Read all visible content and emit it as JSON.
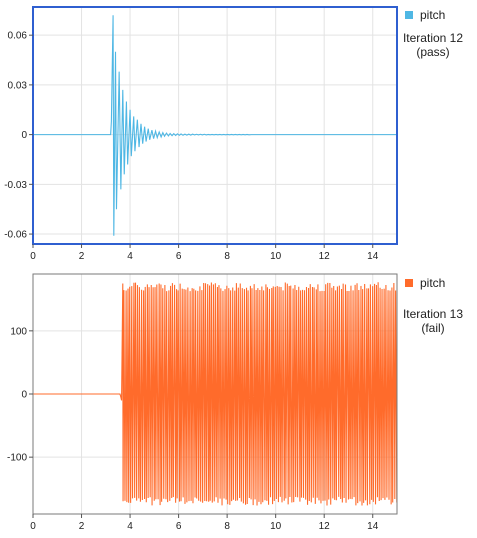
{
  "chart_data": [
    {
      "type": "line",
      "panel": "top",
      "selected": true,
      "xlim": [
        0,
        15
      ],
      "ylim": [
        -0.066,
        0.077
      ],
      "x_ticks": [
        0,
        2,
        4,
        6,
        8,
        10,
        12,
        14
      ],
      "y_ticks": [
        0.06,
        0.03,
        0,
        -0.03,
        -0.06
      ],
      "y_tick_labels": [
        "0.06",
        "0.03",
        "0",
        "-0.03",
        "-0.06"
      ],
      "grid": true,
      "legend_position": "top-right",
      "series": [
        {
          "name": "pitch",
          "color": "#4fb7e4",
          "x": [
            0,
            3.2,
            3.23,
            3.3,
            3.33,
            3.4,
            3.44,
            3.55,
            3.62,
            3.7,
            3.76,
            3.85,
            3.9,
            4.0,
            4.05,
            4.15,
            4.2,
            4.3,
            4.37,
            4.45,
            4.52,
            4.6,
            4.66,
            4.75,
            4.81,
            4.9,
            4.97,
            5.05,
            5.12,
            5.2,
            5.28,
            5.35,
            5.42,
            5.5,
            5.58,
            5.65,
            5.73,
            5.8,
            5.88,
            5.95,
            6.03,
            6.1,
            6.18,
            6.26,
            6.34,
            6.42,
            6.5,
            6.58,
            6.66,
            6.74,
            6.82,
            6.9,
            6.98,
            7.06,
            7.14,
            7.22,
            7.3,
            7.38,
            7.46,
            7.54,
            7.62,
            7.7,
            7.78,
            7.86,
            7.94,
            8.02,
            8.1,
            8.18,
            8.26,
            8.34,
            8.42,
            8.5,
            8.58,
            8.66,
            8.74,
            8.82,
            8.9,
            9.0,
            15
          ],
          "y": [
            0,
            0,
            0.008,
            0.072,
            -0.061,
            0.05,
            -0.045,
            0.038,
            -0.033,
            0.027,
            -0.024,
            0.02,
            -0.018,
            0.015,
            -0.013,
            0.011,
            -0.01,
            0.009,
            -0.0075,
            0.0065,
            -0.0055,
            0.0048,
            -0.0042,
            0.0036,
            -0.0031,
            0.0027,
            -0.0024,
            0.0021,
            -0.0018,
            0.0016,
            -0.0014,
            0.0012,
            -0.001,
            0.0009,
            -0.0008,
            0.0007,
            -0.0006,
            0.0006,
            -0.0005,
            0.0005,
            -0.0004,
            0.0004,
            -0.0004,
            0.0003,
            -0.0003,
            0.0003,
            -0.0003,
            0.0003,
            -0.0002,
            0.0002,
            -0.0002,
            0.0002,
            -0.0002,
            0.0002,
            -0.0002,
            0.0001,
            -0.0001,
            0.0001,
            -0.0001,
            0.0001,
            -0.0001,
            0.0001,
            -0.0001,
            0.0001,
            -0.0001,
            0.0001,
            -0.0001,
            0.0001,
            -0.0001,
            0.0001,
            -0.0001,
            0.0001,
            -0.0001,
            0.0001,
            -0.0001,
            0.0001,
            -0.0001,
            0,
            0
          ]
        }
      ],
      "annotation": [
        "Iteration 12",
        "(pass)"
      ]
    },
    {
      "type": "line",
      "panel": "bottom",
      "selected": false,
      "xlim": [
        0,
        15
      ],
      "ylim": [
        -190,
        190
      ],
      "x_ticks": [
        0,
        2,
        4,
        6,
        8,
        10,
        12,
        14
      ],
      "y_ticks": [
        100,
        0,
        -100
      ],
      "y_tick_labels": [
        "100",
        "0",
        "-100"
      ],
      "grid": true,
      "legend_position": "top-right",
      "series": [
        {
          "name": "pitch",
          "color": "#ff6b2b",
          "x": [
            0,
            3.55,
            3.58,
            3.6,
            3.62,
            3.65,
            3.7,
            3.78,
            3.85,
            15
          ],
          "y": [
            0,
            0,
            0,
            -2,
            -5,
            -10,
            175,
            -178,
            176,
            -176
          ],
          "oscillation": {
            "from": 3.7,
            "to": 15,
            "amplitude": 177,
            "period": 0.08
          }
        }
      ],
      "annotation": [
        "Iteration 13",
        "(fail)"
      ]
    }
  ]
}
